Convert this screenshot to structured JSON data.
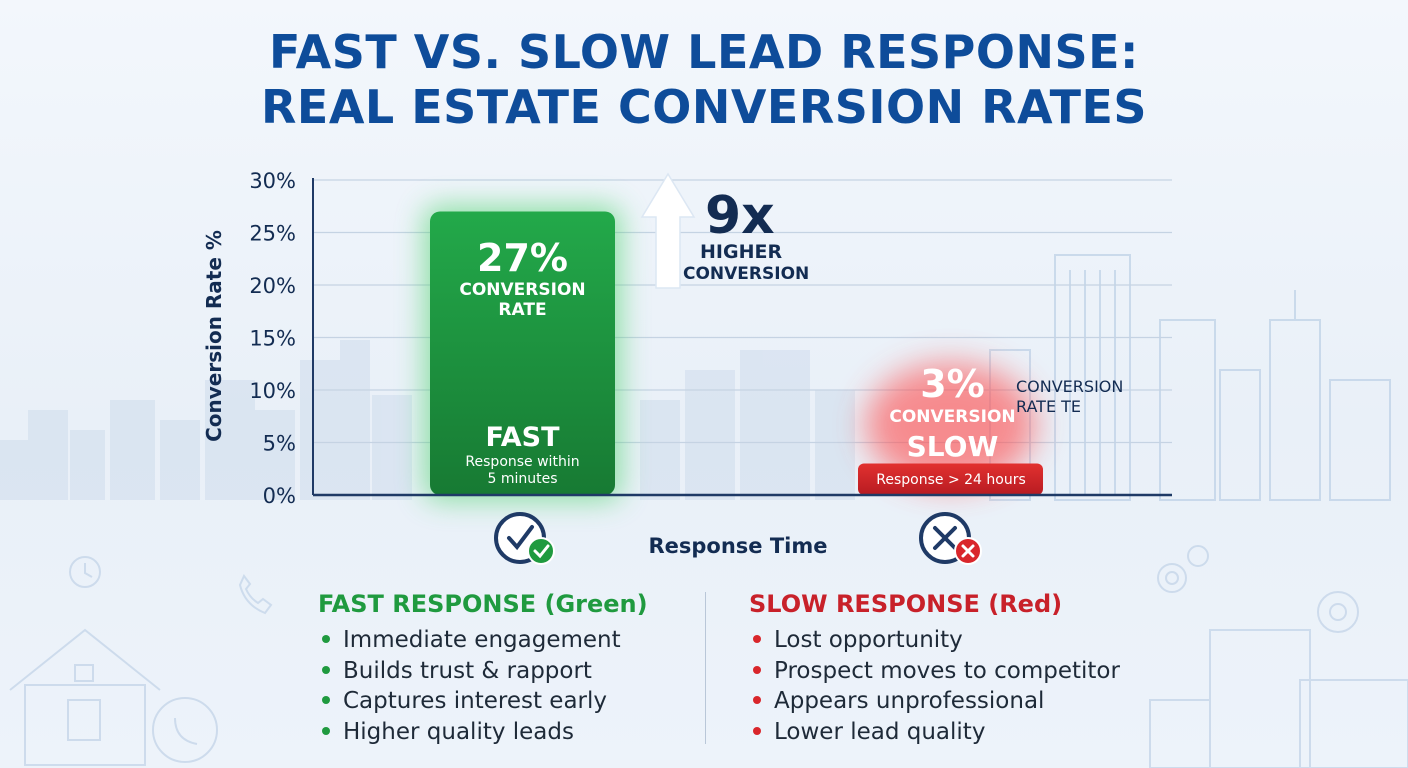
{
  "title": {
    "line1": "FAST VS. SLOW LEAD RESPONSE:",
    "line2": "REAL ESTATE CONVERSION RATES"
  },
  "colors": {
    "title": "#0e4c9a",
    "fast": "#1f9a3f",
    "slow": "#d9262b",
    "axis": "#1f3a66"
  },
  "chart_data": {
    "type": "bar",
    "categories": [
      "FAST",
      "SLOW"
    ],
    "values": [
      27,
      3
    ],
    "ylabel": "Conversion Rate %",
    "xlabel": "Response Time",
    "ylim": [
      0,
      30
    ],
    "yticks": [
      "0%",
      "5%",
      "10%",
      "15%",
      "20%",
      "25%",
      "30%"
    ],
    "grid": true,
    "bars": [
      {
        "name": "FAST",
        "value": 27,
        "value_label": "27%",
        "value_caption": [
          "CONVERSION",
          "RATE"
        ],
        "caption": [
          "Response within",
          "5 minutes"
        ],
        "color": "#1f9a3f",
        "icon": "clock-check-icon"
      },
      {
        "name": "SLOW",
        "value": 3,
        "value_label": "3%",
        "value_caption": [
          "CONVERSION"
        ],
        "caption": [
          "Response > 24 hours"
        ],
        "side_note": [
          "CONVERSION",
          "RATE TE"
        ],
        "color": "#d9262b",
        "icon": "clock-x-icon"
      }
    ],
    "annotation": {
      "multiplier": "9x",
      "text": [
        "HIGHER",
        "CONVERSION"
      ],
      "icon": "up-arrow-icon"
    }
  },
  "legend": {
    "fast": {
      "heading": "FAST RESPONSE (Green)",
      "items": [
        "Immediate engagement",
        "Builds trust & rapport",
        "Captures interest early",
        "Higher quality leads"
      ]
    },
    "slow": {
      "heading": "SLOW RESPONSE (Red)",
      "items": [
        "Lost opportunity",
        "Prospect moves to competitor",
        "Appears unprofessional",
        "Lower lead quality"
      ]
    }
  }
}
